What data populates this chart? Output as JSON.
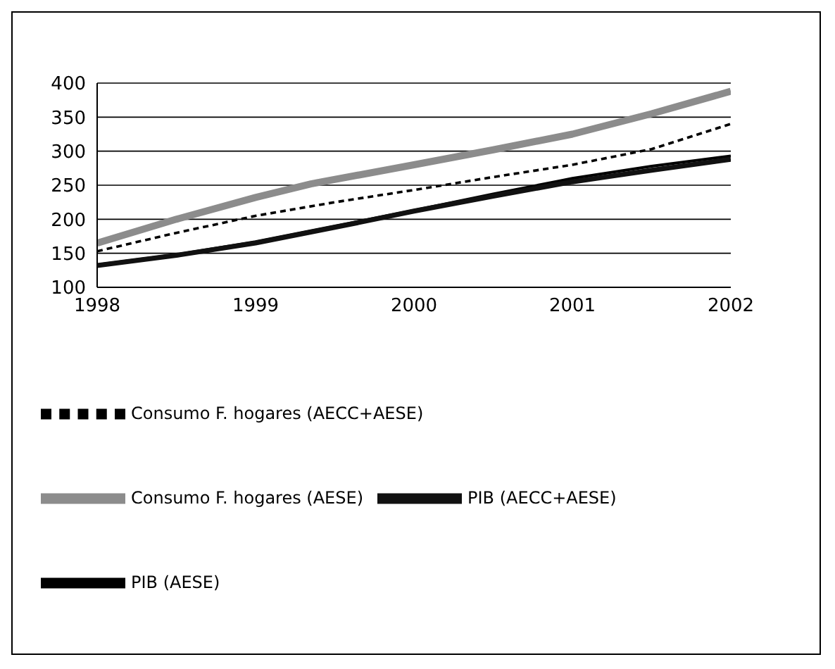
{
  "chart_data": {
    "type": "line",
    "xlim": [
      1998,
      2002
    ],
    "xticks": [
      1998,
      1999,
      2000,
      2001,
      2002
    ],
    "ylim": [
      100,
      400
    ],
    "yticks": [
      100,
      150,
      200,
      250,
      300,
      350,
      400
    ],
    "grid": "y",
    "legend": "bottom",
    "marker": "none",
    "series": [
      {
        "name": "PIB (AESE)",
        "color": "#000000",
        "line_style": "solid",
        "x": [
          1998,
          1998.5,
          1999,
          1999.5,
          2000,
          2000.5,
          2001,
          2001.5,
          2002
        ],
        "values": [
          133,
          148,
          167,
          190,
          213,
          237,
          260,
          278,
          293
        ]
      },
      {
        "name": "PIB (AECC+AESE)",
        "color": "#111111",
        "line_style": "solid",
        "x": [
          1998,
          1998.5,
          1999,
          1999.5,
          2000,
          2000.5,
          2001,
          2001.5,
          2002
        ],
        "values": [
          132,
          147,
          165,
          188,
          212,
          234,
          255,
          272,
          288
        ]
      },
      {
        "name": "Consumo F. hogares (AESE)",
        "color": "#8c8c8c",
        "line_style": "solid",
        "x": [
          1998,
          1998.5,
          1999,
          1999.35,
          2000,
          2000.5,
          2001,
          2001.5,
          2002
        ],
        "values": [
          165,
          200,
          232,
          252,
          280,
          302,
          325,
          355,
          388
        ]
      },
      {
        "name": "Consumo F. hogares (AECC+AESE)",
        "color": "#000000",
        "line_style": "dashed",
        "x": [
          1998,
          1998.5,
          1999,
          1999.5,
          2000,
          2000.5,
          2001,
          2001.5,
          2002
        ],
        "values": [
          153,
          180,
          205,
          225,
          243,
          262,
          280,
          303,
          340
        ]
      }
    ]
  }
}
